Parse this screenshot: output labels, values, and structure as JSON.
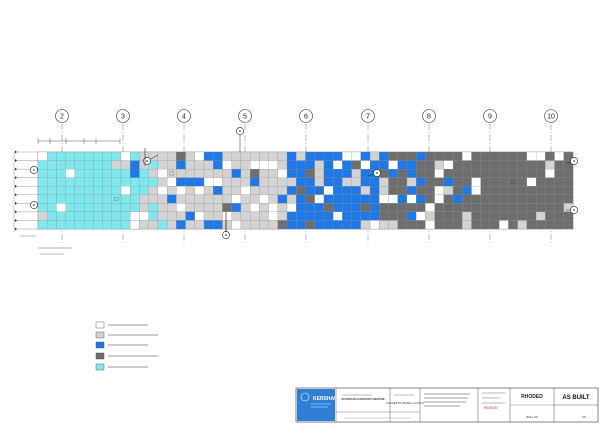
{
  "gridlines": [
    "2",
    "3",
    "4",
    "5",
    "6",
    "7",
    "8",
    "9",
    "10"
  ],
  "panel_types": [
    {
      "key": "blank",
      "color": "#ffffff"
    },
    {
      "key": "grey",
      "color": "#d3d3d3"
    },
    {
      "key": "blue",
      "color": "#1e78e6"
    },
    {
      "key": "dark",
      "color": "#6e6e6e"
    },
    {
      "key": "cyan",
      "color": "#7fe8ee"
    }
  ],
  "colors": {
    "line": "#555555",
    "border": "#333333",
    "logo_bg": "#2e7fd6"
  },
  "title_block": {
    "company": "KERSHAW",
    "status": "AS BUILT",
    "project": "PLYMOUTH HISTORY CENTRE",
    "drawing_title": "CASSETTE PANEL LAYOUT",
    "red_text": "REASON",
    "drawing_no": "801-L30",
    "revision": "A0",
    "brand": "RHODED"
  }
}
